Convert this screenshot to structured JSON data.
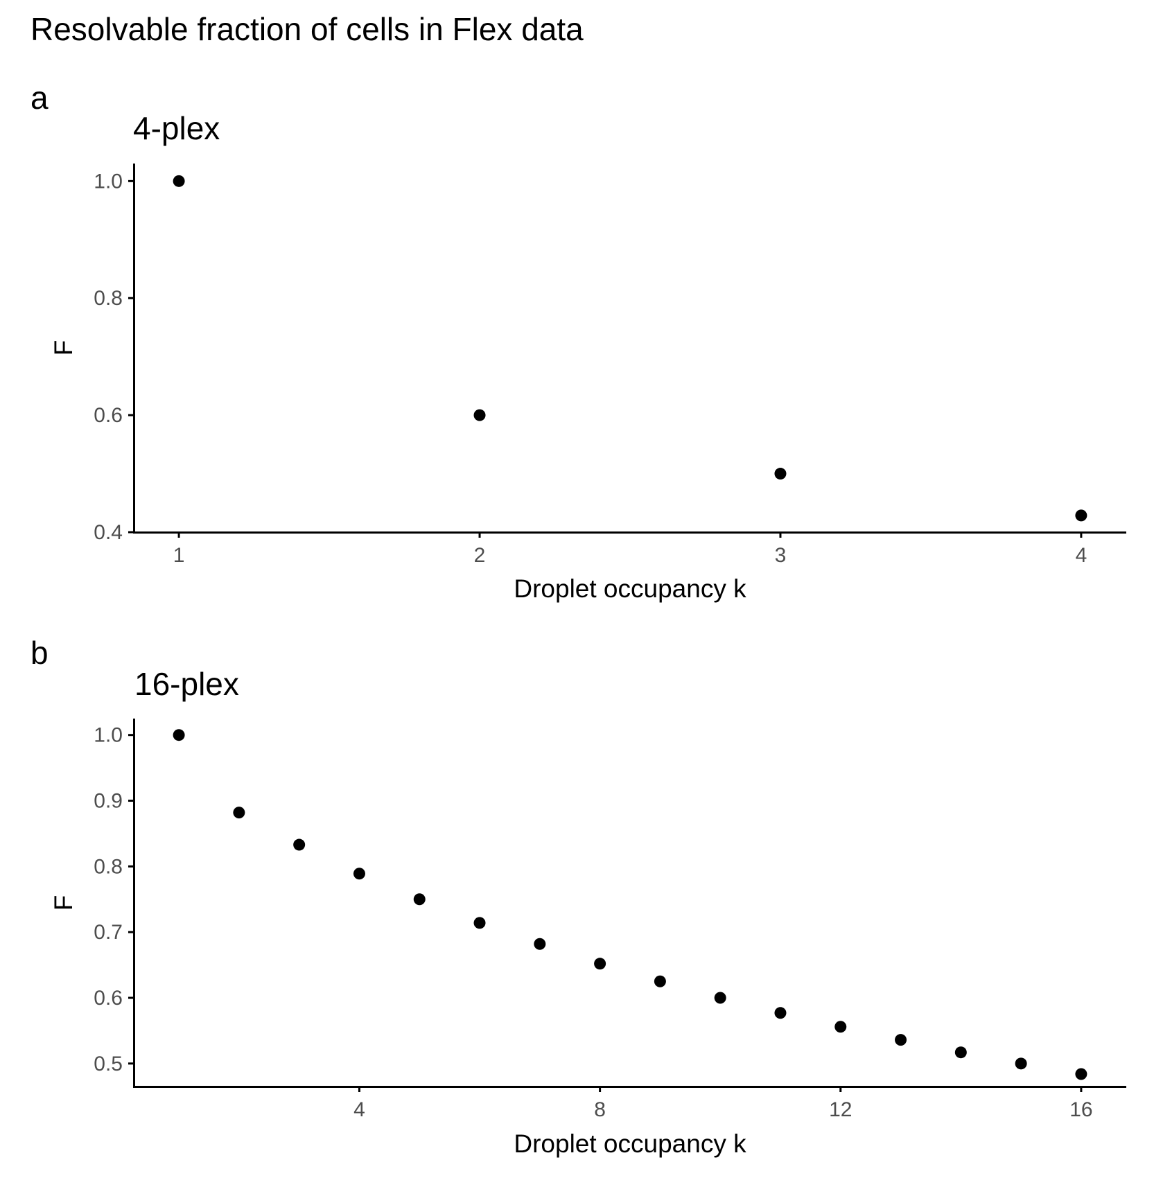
{
  "figure": {
    "title": "Resolvable fraction of cells in Flex data"
  },
  "chart_data": [
    {
      "type": "scatter",
      "panel_tag": "a",
      "title": "4-plex",
      "xlabel": "Droplet occupancy k",
      "ylabel": "F",
      "x": [
        1,
        2,
        3,
        4
      ],
      "y": [
        1.0,
        0.6,
        0.5,
        0.4286
      ],
      "xlim": [
        0.85,
        4.15
      ],
      "ylim": [
        0.4,
        1.03
      ],
      "xticks": [
        1,
        2,
        3,
        4
      ],
      "xtick_labels": [
        "1",
        "2",
        "3",
        "4"
      ],
      "yticks": [
        0.4,
        0.6,
        0.8,
        1.0
      ],
      "ytick_labels": [
        "0.4",
        "0.6",
        "0.8",
        "1.0"
      ],
      "grid": false,
      "point_color": "#000000"
    },
    {
      "type": "scatter",
      "panel_tag": "b",
      "title": "16-plex",
      "xlabel": "Droplet occupancy k",
      "ylabel": "F",
      "x": [
        1,
        2,
        3,
        4,
        5,
        6,
        7,
        8,
        9,
        10,
        11,
        12,
        13,
        14,
        15,
        16
      ],
      "y": [
        1.0,
        0.882,
        0.833,
        0.789,
        0.75,
        0.714,
        0.682,
        0.652,
        0.625,
        0.6,
        0.577,
        0.556,
        0.536,
        0.517,
        0.5,
        0.484
      ],
      "xlim": [
        0.25,
        16.75
      ],
      "ylim": [
        0.465,
        1.025
      ],
      "xticks": [
        4,
        8,
        12,
        16
      ],
      "xtick_labels": [
        "4",
        "8",
        "12",
        "16"
      ],
      "yticks": [
        0.5,
        0.6,
        0.7,
        0.8,
        0.9,
        1.0
      ],
      "ytick_labels": [
        "0.5",
        "0.6",
        "0.7",
        "0.8",
        "0.9",
        "1.0"
      ],
      "grid": false,
      "point_color": "#000000"
    }
  ]
}
